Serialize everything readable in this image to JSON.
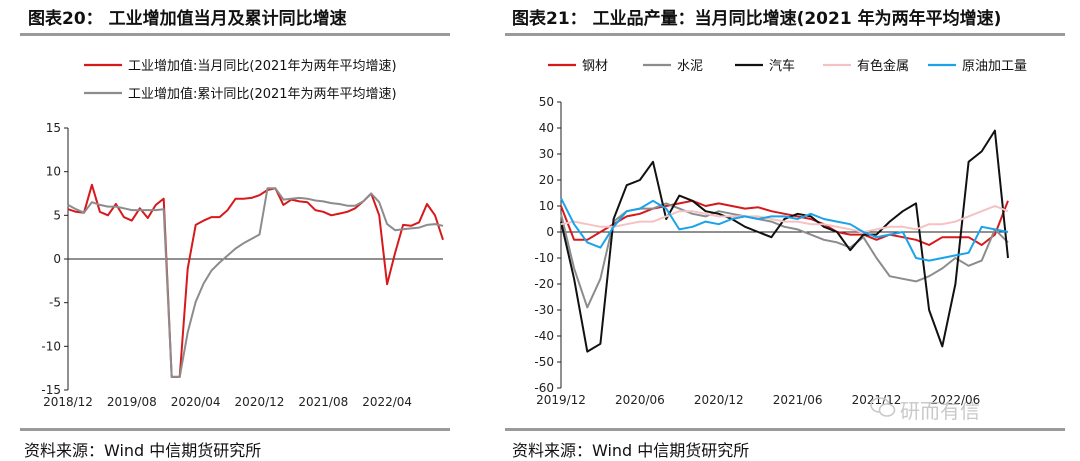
{
  "left_panel": {
    "title": "图表20： 工业增加值当月及累计同比增速",
    "source": "资料来源：Wind 中信期货研究所"
  },
  "right_panel": {
    "title": "图表21： 工业品产量：当月同比增速(2021 年为两年平均增速)",
    "source": "资料来源：Wind 中信期货研究所"
  },
  "watermark": "研而有信",
  "chart_data": [
    {
      "type": "line",
      "title": "",
      "ylim": [
        -15,
        15
      ],
      "yticks": [
        -15,
        -10,
        -5,
        0,
        5,
        10,
        15
      ],
      "x": [
        "2018/12",
        "2019/01",
        "2019/02",
        "2019/03",
        "2019/04",
        "2019/05",
        "2019/06",
        "2019/07",
        "2019/08",
        "2019/09",
        "2019/10",
        "2019/11",
        "2019/12",
        "2020/01",
        "2020/02",
        "2020/03",
        "2020/04",
        "2020/05",
        "2020/06",
        "2020/07",
        "2020/08",
        "2020/09",
        "2020/10",
        "2020/11",
        "2020/12",
        "2021/01",
        "2021/02",
        "2021/03",
        "2021/04",
        "2021/05",
        "2021/06",
        "2021/07",
        "2021/08",
        "2021/09",
        "2021/10",
        "2021/11",
        "2021/12",
        "2022/01",
        "2022/02",
        "2022/03",
        "2022/04",
        "2022/05",
        "2022/06",
        "2022/07",
        "2022/08",
        "2022/09",
        "2022/10",
        "2022/11"
      ],
      "xtick_labels": [
        "2018/12",
        "2019/08",
        "2020/04",
        "2020/12",
        "2021/08",
        "2022/04"
      ],
      "series": [
        {
          "name": "工业增加值:当月同比(2021年为两年平均增速)",
          "color": "#d7191c",
          "values": [
            5.7,
            5.4,
            5.3,
            8.5,
            5.4,
            5.0,
            6.3,
            4.8,
            4.4,
            5.8,
            4.7,
            6.2,
            6.9,
            -13.5,
            -13.5,
            -1.1,
            3.9,
            4.4,
            4.8,
            4.8,
            5.6,
            6.9,
            6.9,
            7.0,
            7.3,
            7.9,
            8.1,
            6.2,
            6.8,
            6.6,
            6.5,
            5.6,
            5.4,
            5.0,
            5.2,
            5.4,
            5.8,
            6.6,
            7.5,
            5.0,
            -2.9,
            0.7,
            3.9,
            3.8,
            4.2,
            6.3,
            5.0,
            2.2
          ]
        },
        {
          "name": "工业增加值:累计同比(2021年为两年平均增速)",
          "color": "#8c8c8c",
          "values": [
            6.2,
            5.7,
            5.3,
            6.5,
            6.2,
            6.0,
            6.0,
            5.8,
            5.6,
            5.6,
            5.6,
            5.6,
            5.7,
            -13.5,
            -13.5,
            -8.4,
            -4.9,
            -2.8,
            -1.3,
            -0.4,
            0.4,
            1.2,
            1.8,
            2.3,
            2.8,
            8.1,
            8.1,
            6.8,
            6.9,
            7.0,
            6.9,
            6.7,
            6.6,
            6.4,
            6.3,
            6.1,
            6.1,
            6.6,
            7.5,
            6.5,
            4.0,
            3.3,
            3.4,
            3.5,
            3.6,
            3.9,
            4.0,
            3.8
          ]
        }
      ]
    },
    {
      "type": "line",
      "title": "",
      "ylim": [
        -60,
        50
      ],
      "yticks": [
        -60,
        -50,
        -40,
        -30,
        -20,
        -10,
        0,
        10,
        20,
        30,
        40,
        50
      ],
      "x": [
        "2019/12",
        "2020/01",
        "2020/02",
        "2020/03",
        "2020/04",
        "2020/05",
        "2020/06",
        "2020/07",
        "2020/08",
        "2020/09",
        "2020/10",
        "2020/11",
        "2020/12",
        "2021/01",
        "2021/02",
        "2021/03",
        "2021/04",
        "2021/05",
        "2021/06",
        "2021/07",
        "2021/08",
        "2021/09",
        "2021/10",
        "2021/11",
        "2021/12",
        "2022/01",
        "2022/02",
        "2022/03",
        "2022/04",
        "2022/05",
        "2022/06",
        "2022/07",
        "2022/08",
        "2022/09",
        "2022/10"
      ],
      "xtick_labels": [
        "2019/12",
        "2020/06",
        "2020/12",
        "2021/06",
        "2021/12",
        "2022/06"
      ],
      "series": [
        {
          "name": "钢材",
          "color": "#d7191c",
          "values": [
            10,
            -3,
            -3,
            0,
            3,
            6,
            7,
            9,
            10,
            11,
            12,
            10,
            11,
            10,
            9,
            9.5,
            8,
            7,
            6,
            5,
            3,
            0,
            -1,
            -1,
            -3,
            -1,
            -2,
            -3,
            -5,
            -2,
            -2,
            -2,
            -5,
            -1,
            12
          ]
        },
        {
          "name": "水泥",
          "color": "#8c8c8c",
          "values": [
            7,
            -14,
            -29,
            -18,
            4,
            8,
            9,
            9,
            11,
            9,
            7,
            6,
            8,
            7,
            6,
            5,
            4,
            2,
            1,
            -1,
            -3,
            -4,
            -6,
            -2,
            -10,
            -17,
            -18,
            -19,
            -17,
            -14,
            -10,
            -13,
            -11,
            1,
            -4
          ]
        },
        {
          "name": "汽车",
          "color": "#111111",
          "values": [
            4,
            -18,
            -46,
            -43,
            5,
            18,
            20,
            27,
            5,
            14,
            12,
            8,
            7,
            5,
            2,
            0,
            -2,
            5,
            7,
            6,
            2,
            0,
            -7,
            -1,
            -1,
            4,
            8,
            11,
            -30,
            -44,
            -20,
            27,
            31,
            39,
            -10
          ]
        },
        {
          "name": "有色金属",
          "color": "#f4c2c2",
          "values": [
            3,
            4,
            3,
            2,
            2,
            3,
            4,
            4,
            6,
            8,
            8,
            7,
            6,
            6,
            6,
            6,
            5,
            4,
            4,
            3,
            3,
            2,
            1,
            0,
            1,
            2,
            2,
            1,
            3,
            3,
            4,
            6,
            8,
            10,
            8
          ]
        },
        {
          "name": "原油加工量",
          "color": "#1aa3e8",
          "values": [
            13,
            3,
            -4,
            -6,
            2,
            8,
            9,
            12,
            9,
            1,
            2,
            4,
            3,
            5,
            6,
            5,
            6,
            6,
            5,
            7,
            5,
            4,
            3,
            0,
            -2,
            -1,
            0,
            -10,
            -11,
            -10,
            -9,
            -8,
            2,
            1,
            0
          ]
        }
      ]
    }
  ]
}
